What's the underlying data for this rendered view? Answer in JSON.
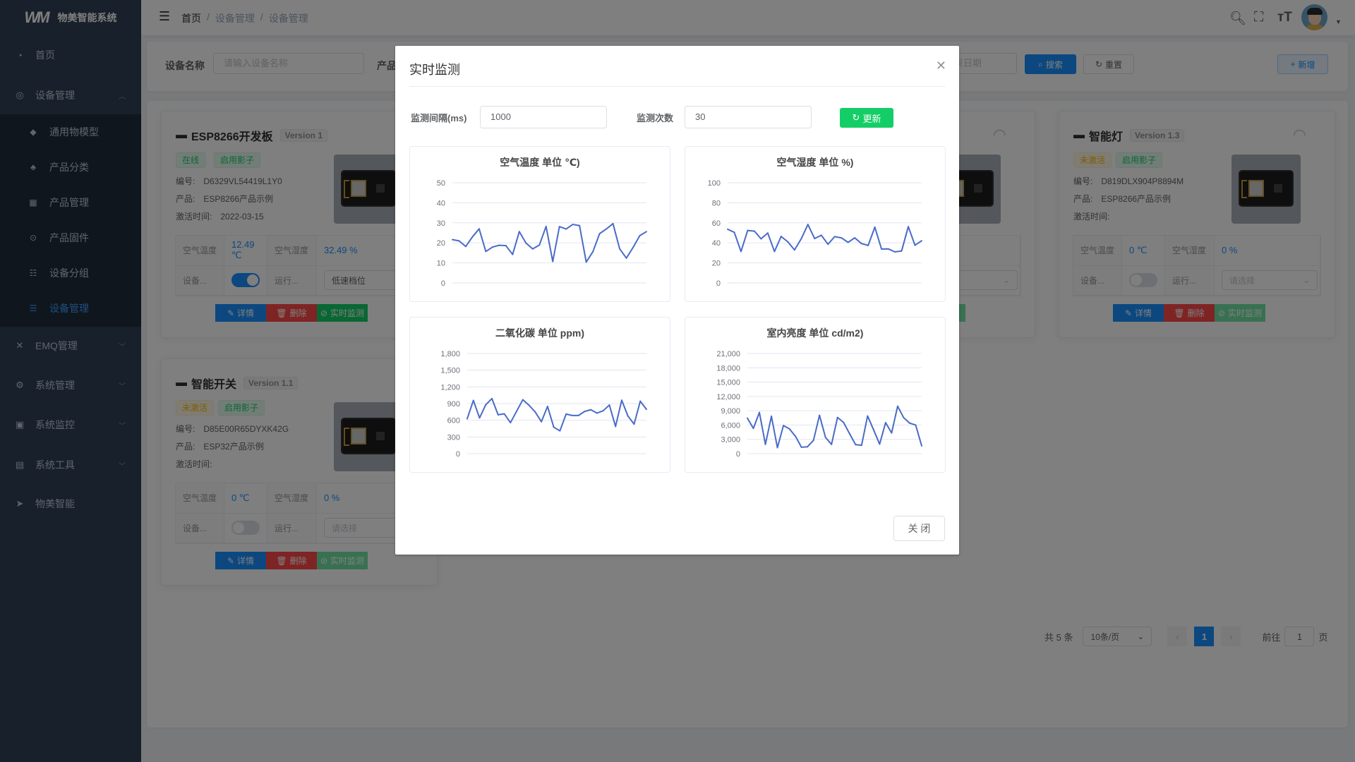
{
  "app": {
    "title": "物美智能系统",
    "logo": "WM"
  },
  "sidebar": {
    "items": [
      {
        "label": "首页",
        "icon": "dashboard-icon"
      },
      {
        "label": "设备管理",
        "icon": "device-icon",
        "expanded": true
      },
      {
        "label": "EMQ管理",
        "icon": "emq-icon"
      },
      {
        "label": "系统管理",
        "icon": "gear-icon"
      },
      {
        "label": "系统监控",
        "icon": "monitor-icon"
      },
      {
        "label": "系统工具",
        "icon": "toolbox-icon"
      },
      {
        "label": "物美智能",
        "icon": "paper-plane-icon"
      }
    ],
    "sub_items": [
      {
        "label": "通用物模型"
      },
      {
        "label": "产品分类"
      },
      {
        "label": "产品管理"
      },
      {
        "label": "产品固件"
      },
      {
        "label": "设备分组"
      },
      {
        "label": "设备管理",
        "active": true
      }
    ]
  },
  "header": {
    "breadcrumb": [
      "首页",
      "设备管理",
      "设备管理"
    ],
    "separator": "/"
  },
  "filter": {
    "device_name_label": "设备名称",
    "device_name_placeholder": "请输入设备名称",
    "product_label": "产品",
    "end_date_placeholder": "束日期",
    "search_label": "搜索",
    "reset_label": "重置",
    "add_label": "新增"
  },
  "cards": [
    {
      "name": "ESP8266开发板",
      "version": "Version 1",
      "status": "在线",
      "shadow": "启用影子",
      "serial_label": "编号:",
      "serial": "D6329VL54419L1Y0",
      "product_label": "产品:",
      "product": "ESP8266产品示例",
      "activated_label": "激活时间:",
      "activated": "2022-03-15",
      "temp_label": "空气温度",
      "temp": "12.49 ℃",
      "hum_label": "空气湿度",
      "hum": "32.49 %",
      "switch_label": "设备...",
      "switch_on": true,
      "run_label": "运行...",
      "run_value": "低速档位",
      "detail": "详情",
      "delete": "删除",
      "monitor": "实时监测"
    },
    {
      "monitor_partial": "测"
    },
    {
      "name": "智能灯",
      "version": "Version 1.3",
      "status": "未激活",
      "shadow": "启用影子",
      "serial_label": "编号:",
      "serial": "D819DLX904P8894M",
      "product_label": "产品:",
      "product": "ESP8266产品示例",
      "activated_label": "激活时间:",
      "activated": "",
      "temp_label": "空气温度",
      "temp": "0 ℃",
      "hum_label": "空气湿度",
      "hum": "0 %",
      "switch_label": "设备...",
      "switch_on": false,
      "run_label": "运行...",
      "run_value": "请选择",
      "detail": "详情",
      "delete": "删除",
      "monitor": "实时监测"
    },
    {
      "name": "智能开关",
      "version": "Version 1.1",
      "status": "未激活",
      "shadow": "启用影子",
      "serial_label": "编号:",
      "serial": "D85E00R65DYXK42G",
      "product_label": "产品:",
      "product": "ESP32产品示例",
      "activated_label": "激活时间:",
      "activated": "",
      "temp_label": "空气温度",
      "temp": "0 ℃",
      "hum_label": "空气湿度",
      "hum": "0 %",
      "switch_label": "设备...",
      "switch_on": false,
      "run_label": "运行...",
      "run_value": "请选择",
      "detail": "详情",
      "delete": "删除",
      "monitor": "实时监测"
    }
  ],
  "pagination": {
    "total": "共 5 条",
    "page_size": "10条/页",
    "current": "1",
    "goto_label": "前往",
    "goto_value": "1",
    "page_suffix": "页"
  },
  "modal": {
    "title": "实时监测",
    "interval_label": "监测间隔(ms)",
    "interval_value": "1000",
    "count_label": "监测次数",
    "count_value": "30",
    "update_label": "更新",
    "close_label": "关 闭",
    "line_color": "#4a6bc8"
  },
  "chart_data": [
    {
      "type": "line",
      "title": "空气温度 单位 ℃)",
      "ylim": [
        0,
        50
      ],
      "yticks": [
        "0",
        "10",
        "20",
        "30",
        "40",
        "50"
      ],
      "tick_values": [
        0,
        10,
        20,
        30,
        40,
        50
      ],
      "grid": true,
      "values": [
        21.6,
        21,
        18.2,
        23,
        27,
        15.7,
        17.9,
        18.8,
        18.6,
        14.2,
        25.6,
        19.9,
        17,
        18.9,
        28.2,
        10.7,
        28.1,
        26.9,
        29.2,
        28.6,
        10.4,
        15.6,
        24.6,
        26.9,
        29.6,
        17,
        12.4,
        17.7,
        23.6,
        25.6
      ]
    },
    {
      "type": "line",
      "title": "空气湿度 单位 %)",
      "ylim": [
        0,
        100
      ],
      "yticks": [
        "0",
        "20",
        "40",
        "60",
        "80",
        "100"
      ],
      "tick_values": [
        0,
        20,
        40,
        60,
        80,
        100
      ],
      "grid": true,
      "values": [
        53.6,
        50.5,
        31.4,
        52.4,
        51.7,
        44,
        49.8,
        31.4,
        46.4,
        41,
        32.9,
        44,
        58.3,
        44.3,
        47.6,
        38.6,
        46.2,
        45,
        40.5,
        45,
        39.3,
        37.4,
        55.7,
        33.8,
        34,
        31,
        31.9,
        56.2,
        37.6,
        42.1
      ]
    },
    {
      "type": "line",
      "title": "二氧化碳 单位 ppm)",
      "ylim": [
        0,
        1800
      ],
      "yticks": [
        "0",
        "300",
        "600",
        "900",
        "1,200",
        "1,500",
        "1,800"
      ],
      "tick_values": [
        0,
        300,
        600,
        900,
        1200,
        1500,
        1800
      ],
      "grid": true,
      "values": [
        626,
        956,
        643,
        879,
        990,
        699,
        716,
        557,
        763,
        969,
        870,
        750,
        574,
        849,
        476,
        411,
        711,
        686,
        686,
        759,
        789,
        729,
        771,
        874,
        489,
        960,
        677,
        531,
        943,
        797
      ]
    },
    {
      "type": "line",
      "title": "室内亮度 单位 cd/m2)",
      "ylim": [
        0,
        21000
      ],
      "yticks": [
        "0",
        "3,000",
        "6,000",
        "9,000",
        "12,000",
        "15,000",
        "18,000",
        "21,000"
      ],
      "tick_values": [
        0,
        3000,
        6000,
        9000,
        12000,
        15000,
        18000,
        21000
      ],
      "grid": true,
      "values": [
        7450,
        5300,
        8650,
        1950,
        7850,
        1250,
        5900,
        5200,
        3650,
        1350,
        1450,
        2800,
        8050,
        3400,
        1950,
        7600,
        6550,
        4200,
        1900,
        1750,
        7900,
        5000,
        2000,
        6500,
        4350,
        9950,
        7550,
        6400,
        6000,
        1650
      ]
    }
  ]
}
